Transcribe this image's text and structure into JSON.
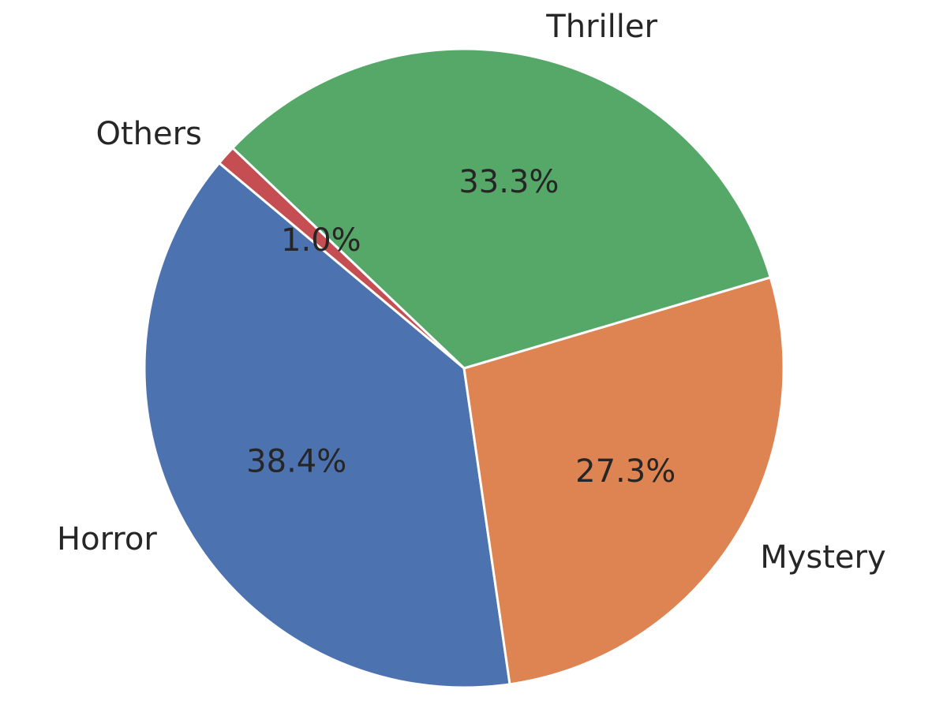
{
  "chart_data": {
    "type": "pie",
    "title": "",
    "slices": [
      {
        "label": "Horror",
        "percent_label": "38.4%",
        "value": 38.4,
        "color": "#4C72B0"
      },
      {
        "label": "Mystery",
        "percent_label": "27.3%",
        "value": 27.3,
        "color": "#DD8452"
      },
      {
        "label": "Thriller",
        "percent_label": "33.3%",
        "value": 33.3,
        "color": "#55A868"
      },
      {
        "label": "Others",
        "percent_label": "1.0%",
        "value": 1.0,
        "color": "#C44E52"
      }
    ],
    "start_angle_deg": 140,
    "direction": "counterclockwise",
    "edge_color": "#FFFFFF",
    "legend": "none"
  }
}
